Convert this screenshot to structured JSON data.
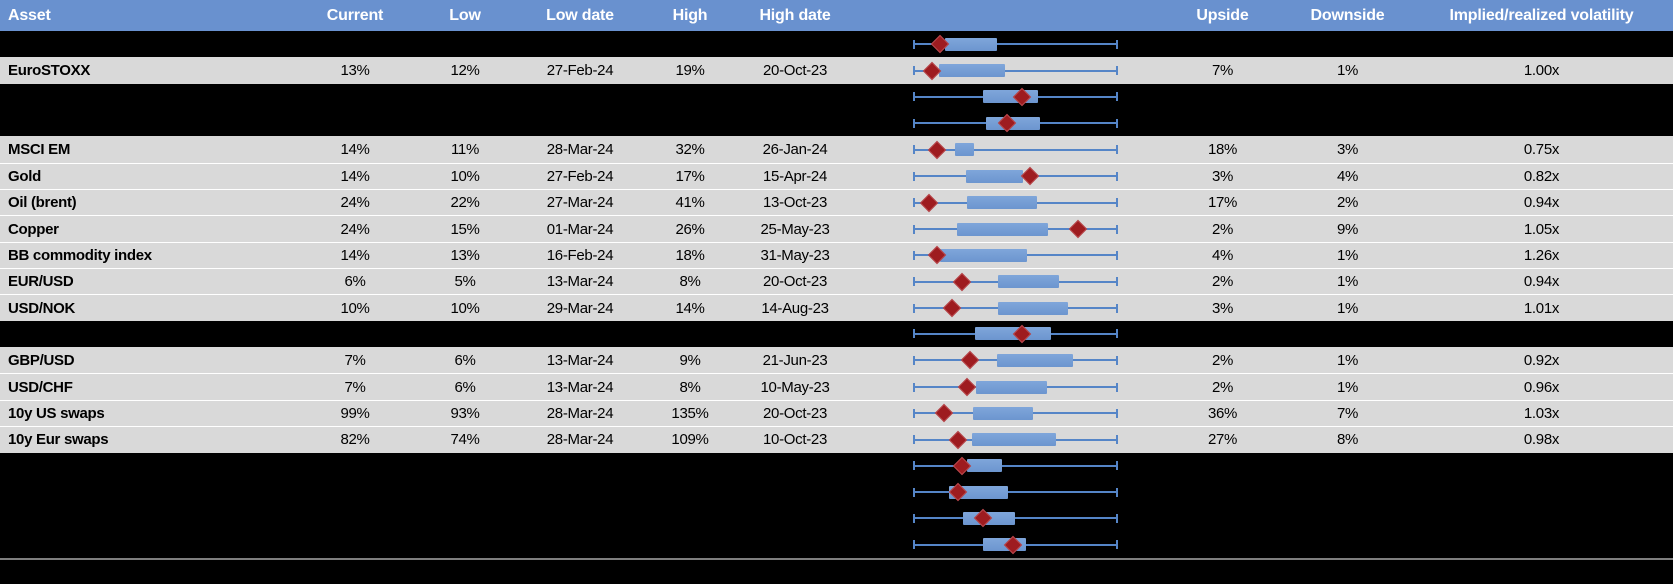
{
  "colors": {
    "header_bg": "#6991CF",
    "header_text": "#FFFFFF",
    "row_gray": "#D9D9D9",
    "row_black": "#000000",
    "whisker": "#5585C7",
    "box_fill": "#6C95CF",
    "box_light": "#7FA6DA",
    "marker": "#9E1C20",
    "marker_rim": "#B94A4E",
    "separator": "#7F7F7F",
    "row_divider": "#FFFFFF"
  },
  "columns": [
    {
      "key": "asset",
      "label": "Asset"
    },
    {
      "key": "current",
      "label": "Current"
    },
    {
      "key": "low",
      "label": "Low"
    },
    {
      "key": "low_date",
      "label": "Low date"
    },
    {
      "key": "high",
      "label": "High"
    },
    {
      "key": "high_date",
      "label": "High date"
    },
    {
      "key": "chart",
      "label": ""
    },
    {
      "key": "upside",
      "label": "Upside"
    },
    {
      "key": "downside",
      "label": "Downside"
    },
    {
      "key": "implied",
      "label": "Implied/realized volatility"
    }
  ],
  "rows": [
    {
      "style": "black",
      "asset": "",
      "current": "",
      "low": "",
      "low_date": "",
      "high": "",
      "high_date": "",
      "upside": "",
      "downside": "",
      "implied": "",
      "boxplot": {
        "box_lo": 0.156,
        "box_hi": 0.41,
        "marker": 0.132
      }
    },
    {
      "style": "gray",
      "asset": "EuroSTOXX",
      "current": "13%",
      "low": "12%",
      "low_date": "27-Feb-24",
      "high": "19%",
      "high_date": "20-Oct-23",
      "upside": "7%",
      "downside": "1%",
      "implied": "1.00x",
      "boxplot": {
        "box_lo": 0.127,
        "box_hi": 0.449,
        "marker": 0.093
      }
    },
    {
      "style": "black",
      "asset": "",
      "current": "",
      "low": "",
      "low_date": "",
      "high": "",
      "high_date": "",
      "upside": "",
      "downside": "",
      "implied": "",
      "boxplot": {
        "box_lo": 0.341,
        "box_hi": 0.61,
        "marker": 0.532
      }
    },
    {
      "style": "black",
      "asset": "",
      "current": "",
      "low": "",
      "low_date": "",
      "high": "",
      "high_date": "",
      "upside": "",
      "downside": "",
      "implied": "",
      "boxplot": {
        "box_lo": 0.356,
        "box_hi": 0.62,
        "marker": 0.459
      }
    },
    {
      "style": "gray",
      "asset": "MSCI EM",
      "current": "14%",
      "low": "11%",
      "low_date": "28-Mar-24",
      "high": "32%",
      "high_date": "26-Jan-24",
      "upside": "18%",
      "downside": "3%",
      "implied": "0.75x",
      "boxplot": {
        "box_lo": 0.205,
        "box_hi": 0.298,
        "marker": 0.117
      }
    },
    {
      "style": "gray",
      "asset": "Gold",
      "current": "14%",
      "low": "10%",
      "low_date": "27-Feb-24",
      "high": "17%",
      "high_date": "15-Apr-24",
      "upside": "3%",
      "downside": "4%",
      "implied": "0.82x",
      "boxplot": {
        "box_lo": 0.259,
        "box_hi": 0.537,
        "marker": 0.571
      }
    },
    {
      "style": "gray",
      "asset": "Oil (brent)",
      "current": "24%",
      "low": "22%",
      "low_date": "27-Mar-24",
      "high": "41%",
      "high_date": "13-Oct-23",
      "upside": "17%",
      "downside": "2%",
      "implied": "0.94x",
      "boxplot": {
        "box_lo": 0.263,
        "box_hi": 0.605,
        "marker": 0.078
      }
    },
    {
      "style": "gray",
      "asset": "Copper",
      "current": "24%",
      "low": "15%",
      "low_date": "01-Mar-24",
      "high": "26%",
      "high_date": "25-May-23",
      "upside": "2%",
      "downside": "9%",
      "implied": "1.05x",
      "boxplot": {
        "box_lo": 0.215,
        "box_hi": 0.659,
        "marker": 0.805
      }
    },
    {
      "style": "gray",
      "asset": "BB commodity index",
      "current": "14%",
      "low": "13%",
      "low_date": "16-Feb-24",
      "high": "18%",
      "high_date": "31-May-23",
      "upside": "4%",
      "downside": "1%",
      "implied": "1.26x",
      "boxplot": {
        "box_lo": 0.132,
        "box_hi": 0.556,
        "marker": 0.117
      }
    },
    {
      "style": "gray",
      "asset": "EUR/USD",
      "current": "6%",
      "low": "5%",
      "low_date": "13-Mar-24",
      "high": "8%",
      "high_date": "20-Oct-23",
      "upside": "2%",
      "downside": "1%",
      "implied": "0.94x",
      "boxplot": {
        "box_lo": 0.415,
        "box_hi": 0.712,
        "marker": 0.239
      }
    },
    {
      "style": "gray",
      "asset": "USD/NOK",
      "current": "10%",
      "low": "10%",
      "low_date": "29-Mar-24",
      "high": "14%",
      "high_date": "14-Aug-23",
      "upside": "3%",
      "downside": "1%",
      "implied": "1.01x",
      "boxplot": {
        "box_lo": 0.415,
        "box_hi": 0.756,
        "marker": 0.19
      }
    },
    {
      "style": "black",
      "asset": "",
      "current": "",
      "low": "",
      "low_date": "",
      "high": "",
      "high_date": "",
      "upside": "",
      "downside": "",
      "implied": "",
      "boxplot": {
        "box_lo": 0.302,
        "box_hi": 0.673,
        "marker": 0.532
      }
    },
    {
      "style": "gray",
      "asset": "GBP/USD",
      "current": "7%",
      "low": "6%",
      "low_date": "13-Mar-24",
      "high": "9%",
      "high_date": "21-Jun-23",
      "upside": "2%",
      "downside": "1%",
      "implied": "0.92x",
      "boxplot": {
        "box_lo": 0.41,
        "box_hi": 0.78,
        "marker": 0.278
      }
    },
    {
      "style": "gray",
      "asset": "USD/CHF",
      "current": "7%",
      "low": "6%",
      "low_date": "13-Mar-24",
      "high": "8%",
      "high_date": "10-May-23",
      "upside": "2%",
      "downside": "1%",
      "implied": "0.96x",
      "boxplot": {
        "box_lo": 0.307,
        "box_hi": 0.654,
        "marker": 0.263
      }
    },
    {
      "style": "gray",
      "asset": "10y US swaps",
      "current": "99%",
      "low": "93%",
      "low_date": "28-Mar-24",
      "high": "135%",
      "high_date": "20-Oct-23",
      "upside": "36%",
      "downside": "7%",
      "implied": "1.03x",
      "boxplot": {
        "box_lo": 0.293,
        "box_hi": 0.585,
        "marker": 0.151
      }
    },
    {
      "style": "gray",
      "asset": "10y Eur swaps",
      "current": "82%",
      "low": "74%",
      "low_date": "28-Mar-24",
      "high": "109%",
      "high_date": "10-Oct-23",
      "upside": "27%",
      "downside": "8%",
      "implied": "0.98x",
      "boxplot": {
        "box_lo": 0.288,
        "box_hi": 0.698,
        "marker": 0.22
      }
    },
    {
      "style": "black",
      "asset": "",
      "current": "",
      "low": "",
      "low_date": "",
      "high": "",
      "high_date": "",
      "upside": "",
      "downside": "",
      "implied": "",
      "boxplot": {
        "box_lo": 0.263,
        "box_hi": 0.434,
        "marker": 0.239
      }
    },
    {
      "style": "black",
      "asset": "",
      "current": "",
      "low": "",
      "low_date": "",
      "high": "",
      "high_date": "",
      "upside": "",
      "downside": "",
      "implied": "",
      "boxplot": {
        "box_lo": 0.176,
        "box_hi": 0.463,
        "marker": 0.22
      }
    },
    {
      "style": "black",
      "asset": "",
      "current": "",
      "low": "",
      "low_date": "",
      "high": "",
      "high_date": "",
      "upside": "",
      "downside": "",
      "implied": "",
      "boxplot": {
        "box_lo": 0.244,
        "box_hi": 0.498,
        "marker": 0.341
      }
    },
    {
      "style": "black",
      "asset": "",
      "current": "",
      "low": "",
      "low_date": "",
      "high": "",
      "high_date": "",
      "upside": "",
      "downside": "",
      "implied": "",
      "boxplot": {
        "box_lo": 0.341,
        "box_hi": 0.551,
        "marker": 0.488
      }
    }
  ],
  "chart_data": {
    "type": "boxplot",
    "orientation": "horizontal",
    "title": "Implied volatility: current level (diamond) within range (whiskers) and interquartile box, per asset",
    "normalized_axis_range": [
      0,
      1
    ],
    "legend": "none",
    "grid": false,
    "rows": [
      {
        "label": null,
        "whiskers": [
          0,
          1
        ],
        "box": [
          0.156,
          0.41
        ],
        "marker": 0.132
      },
      {
        "label": "EuroSTOXX",
        "current_pct": 13,
        "low_pct": 12,
        "high_pct": 19,
        "whiskers": [
          0,
          1
        ],
        "box": [
          0.127,
          0.449
        ],
        "marker": 0.093
      },
      {
        "label": null,
        "whiskers": [
          0,
          1
        ],
        "box": [
          0.341,
          0.61
        ],
        "marker": 0.532
      },
      {
        "label": null,
        "whiskers": [
          0,
          1
        ],
        "box": [
          0.356,
          0.62
        ],
        "marker": 0.459
      },
      {
        "label": "MSCI EM",
        "current_pct": 14,
        "low_pct": 11,
        "high_pct": 32,
        "whiskers": [
          0,
          1
        ],
        "box": [
          0.205,
          0.298
        ],
        "marker": 0.117
      },
      {
        "label": "Gold",
        "current_pct": 14,
        "low_pct": 10,
        "high_pct": 17,
        "whiskers": [
          0,
          1
        ],
        "box": [
          0.259,
          0.537
        ],
        "marker": 0.571
      },
      {
        "label": "Oil (brent)",
        "current_pct": 24,
        "low_pct": 22,
        "high_pct": 41,
        "whiskers": [
          0,
          1
        ],
        "box": [
          0.263,
          0.605
        ],
        "marker": 0.078
      },
      {
        "label": "Copper",
        "current_pct": 24,
        "low_pct": 15,
        "high_pct": 26,
        "whiskers": [
          0,
          1
        ],
        "box": [
          0.215,
          0.659
        ],
        "marker": 0.805
      },
      {
        "label": "BB commodity index",
        "current_pct": 14,
        "low_pct": 13,
        "high_pct": 18,
        "whiskers": [
          0,
          1
        ],
        "box": [
          0.132,
          0.556
        ],
        "marker": 0.117
      },
      {
        "label": "EUR/USD",
        "current_pct": 6,
        "low_pct": 5,
        "high_pct": 8,
        "whiskers": [
          0,
          1
        ],
        "box": [
          0.415,
          0.712
        ],
        "marker": 0.239
      },
      {
        "label": "USD/NOK",
        "current_pct": 10,
        "low_pct": 10,
        "high_pct": 14,
        "whiskers": [
          0,
          1
        ],
        "box": [
          0.415,
          0.756
        ],
        "marker": 0.19
      },
      {
        "label": null,
        "whiskers": [
          0,
          1
        ],
        "box": [
          0.302,
          0.673
        ],
        "marker": 0.532
      },
      {
        "label": "GBP/USD",
        "current_pct": 7,
        "low_pct": 6,
        "high_pct": 9,
        "whiskers": [
          0,
          1
        ],
        "box": [
          0.41,
          0.78
        ],
        "marker": 0.278
      },
      {
        "label": "USD/CHF",
        "current_pct": 7,
        "low_pct": 6,
        "high_pct": 8,
        "whiskers": [
          0,
          1
        ],
        "box": [
          0.307,
          0.654
        ],
        "marker": 0.263
      },
      {
        "label": "10y US swaps",
        "current_pct": 99,
        "low_pct": 93,
        "high_pct": 135,
        "whiskers": [
          0,
          1
        ],
        "box": [
          0.293,
          0.585
        ],
        "marker": 0.151
      },
      {
        "label": "10y Eur swaps",
        "current_pct": 82,
        "low_pct": 74,
        "high_pct": 109,
        "whiskers": [
          0,
          1
        ],
        "box": [
          0.288,
          0.698
        ],
        "marker": 0.22
      },
      {
        "label": null,
        "whiskers": [
          0,
          1
        ],
        "box": [
          0.263,
          0.434
        ],
        "marker": 0.239
      },
      {
        "label": null,
        "whiskers": [
          0,
          1
        ],
        "box": [
          0.176,
          0.463
        ],
        "marker": 0.22
      },
      {
        "label": null,
        "whiskers": [
          0,
          1
        ],
        "box": [
          0.244,
          0.498
        ],
        "marker": 0.341
      },
      {
        "label": null,
        "whiskers": [
          0,
          1
        ],
        "box": [
          0.341,
          0.551
        ],
        "marker": 0.488
      }
    ]
  }
}
